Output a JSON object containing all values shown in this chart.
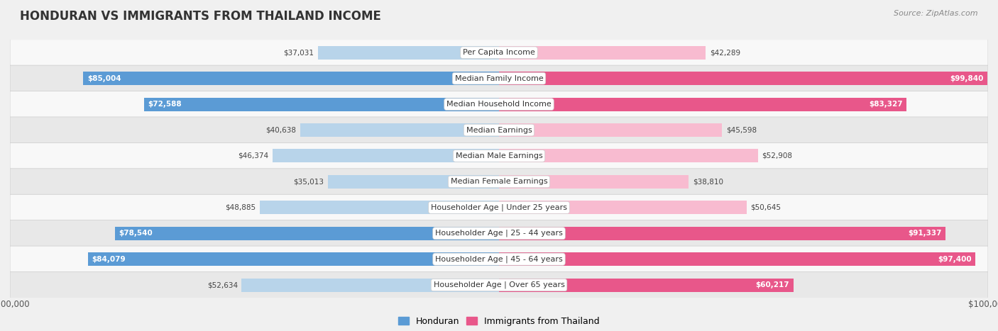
{
  "title": "HONDURAN VS IMMIGRANTS FROM THAILAND INCOME",
  "source": "Source: ZipAtlas.com",
  "categories": [
    "Per Capita Income",
    "Median Family Income",
    "Median Household Income",
    "Median Earnings",
    "Median Male Earnings",
    "Median Female Earnings",
    "Householder Age | Under 25 years",
    "Householder Age | 25 - 44 years",
    "Householder Age | 45 - 64 years",
    "Householder Age | Over 65 years"
  ],
  "honduran": [
    37031,
    85004,
    72588,
    40638,
    46374,
    35013,
    48885,
    78540,
    84079,
    52634
  ],
  "thailand": [
    42289,
    99840,
    83327,
    45598,
    52908,
    38810,
    50645,
    91337,
    97400,
    60217
  ],
  "max_val": 100000,
  "honduran_color_light": "#b8d4ea",
  "honduran_color_dark": "#5b9bd5",
  "thailand_color_light": "#f8bbd0",
  "thailand_color_dark": "#e8578a",
  "bar_height": 0.52,
  "bg_color": "#f0f0f0",
  "row_bg_odd": "#f8f8f8",
  "row_bg_even": "#e8e8e8",
  "title_fontsize": 12,
  "label_fontsize": 8,
  "value_fontsize": 7.5,
  "legend_fontsize": 9,
  "source_fontsize": 8,
  "threshold": 60000
}
